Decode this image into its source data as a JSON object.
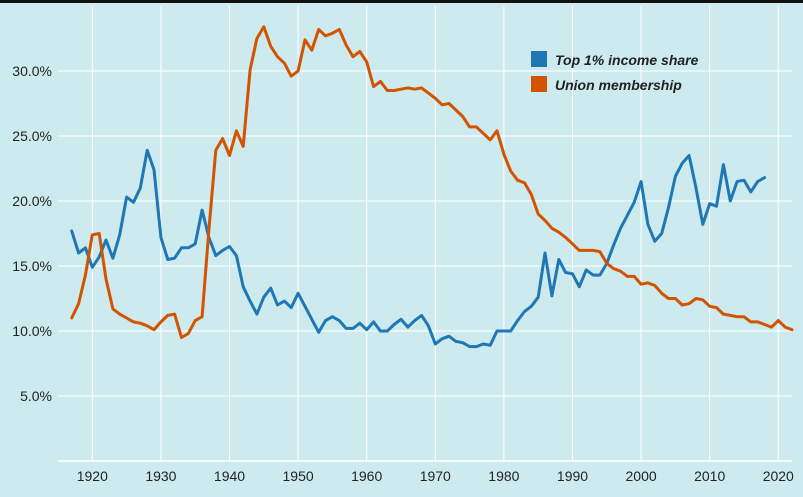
{
  "chart_data": {
    "type": "line",
    "title": "",
    "xlabel": "",
    "ylabel": "",
    "xlim": [
      1915,
      2022
    ],
    "ylim": [
      0,
      35
    ],
    "grid": true,
    "legend_position": "top-right",
    "x_ticks": [
      {
        "value": 1920,
        "label": "1920"
      },
      {
        "value": 1930,
        "label": "1930"
      },
      {
        "value": 1940,
        "label": "1940"
      },
      {
        "value": 1950,
        "label": "1950"
      },
      {
        "value": 1960,
        "label": "1960"
      },
      {
        "value": 1970,
        "label": "1970"
      },
      {
        "value": 1980,
        "label": "1980"
      },
      {
        "value": 1990,
        "label": "1990"
      },
      {
        "value": 2000,
        "label": "2000"
      },
      {
        "value": 2010,
        "label": "2010"
      },
      {
        "value": 2020,
        "label": "2020"
      }
    ],
    "y_ticks": [
      {
        "value": 5,
        "label": "5.0%"
      },
      {
        "value": 10,
        "label": "10.0%"
      },
      {
        "value": 15,
        "label": "15.0%"
      },
      {
        "value": 20,
        "label": "20.0%"
      },
      {
        "value": 25,
        "label": "25.0%"
      },
      {
        "value": 30,
        "label": "30.0%"
      }
    ],
    "series": [
      {
        "name": "Top 1% income share",
        "color": "#1f77b4",
        "points": [
          [
            1917,
            17.7
          ],
          [
            1918,
            16.0
          ],
          [
            1919,
            16.4
          ],
          [
            1920,
            14.9
          ],
          [
            1921,
            15.7
          ],
          [
            1922,
            17.0
          ],
          [
            1923,
            15.6
          ],
          [
            1924,
            17.4
          ],
          [
            1925,
            20.3
          ],
          [
            1926,
            19.9
          ],
          [
            1927,
            21.0
          ],
          [
            1928,
            23.9
          ],
          [
            1929,
            22.4
          ],
          [
            1930,
            17.2
          ],
          [
            1931,
            15.5
          ],
          [
            1932,
            15.6
          ],
          [
            1933,
            16.4
          ],
          [
            1934,
            16.4
          ],
          [
            1935,
            16.7
          ],
          [
            1936,
            19.3
          ],
          [
            1937,
            17.2
          ],
          [
            1938,
            15.8
          ],
          [
            1939,
            16.2
          ],
          [
            1940,
            16.5
          ],
          [
            1941,
            15.8
          ],
          [
            1942,
            13.4
          ],
          [
            1943,
            12.3
          ],
          [
            1944,
            11.3
          ],
          [
            1945,
            12.6
          ],
          [
            1946,
            13.3
          ],
          [
            1947,
            12.0
          ],
          [
            1948,
            12.3
          ],
          [
            1949,
            11.8
          ],
          [
            1950,
            12.9
          ],
          [
            1951,
            11.9
          ],
          [
            1952,
            10.9
          ],
          [
            1953,
            9.9
          ],
          [
            1954,
            10.8
          ],
          [
            1955,
            11.1
          ],
          [
            1956,
            10.8
          ],
          [
            1957,
            10.2
          ],
          [
            1958,
            10.2
          ],
          [
            1959,
            10.6
          ],
          [
            1960,
            10.1
          ],
          [
            1961,
            10.7
          ],
          [
            1962,
            10.0
          ],
          [
            1963,
            10.0
          ],
          [
            1964,
            10.5
          ],
          [
            1965,
            10.9
          ],
          [
            1966,
            10.3
          ],
          [
            1967,
            10.8
          ],
          [
            1968,
            11.2
          ],
          [
            1969,
            10.4
          ],
          [
            1970,
            9.0
          ],
          [
            1971,
            9.4
          ],
          [
            1972,
            9.6
          ],
          [
            1973,
            9.2
          ],
          [
            1974,
            9.1
          ],
          [
            1975,
            8.8
          ],
          [
            1976,
            8.8
          ],
          [
            1977,
            9.0
          ],
          [
            1978,
            8.9
          ],
          [
            1979,
            10.0
          ],
          [
            1980,
            10.0
          ],
          [
            1981,
            10.0
          ],
          [
            1982,
            10.8
          ],
          [
            1983,
            11.5
          ],
          [
            1984,
            11.9
          ],
          [
            1985,
            12.6
          ],
          [
            1986,
            16.0
          ],
          [
            1987,
            12.7
          ],
          [
            1988,
            15.5
          ],
          [
            1989,
            14.5
          ],
          [
            1990,
            14.4
          ],
          [
            1991,
            13.4
          ],
          [
            1992,
            14.7
          ],
          [
            1993,
            14.3
          ],
          [
            1994,
            14.3
          ],
          [
            1995,
            15.2
          ],
          [
            1996,
            16.6
          ],
          [
            1997,
            17.9
          ],
          [
            1998,
            18.9
          ],
          [
            1999,
            19.9
          ],
          [
            2000,
            21.5
          ],
          [
            2001,
            18.2
          ],
          [
            2002,
            16.9
          ],
          [
            2003,
            17.5
          ],
          [
            2004,
            19.5
          ],
          [
            2005,
            21.9
          ],
          [
            2006,
            22.9
          ],
          [
            2007,
            23.5
          ],
          [
            2008,
            21.0
          ],
          [
            2009,
            18.2
          ],
          [
            2010,
            19.8
          ],
          [
            2011,
            19.6
          ],
          [
            2012,
            22.8
          ],
          [
            2013,
            20.0
          ],
          [
            2014,
            21.5
          ],
          [
            2015,
            21.6
          ],
          [
            2016,
            20.7
          ],
          [
            2017,
            21.5
          ],
          [
            2018,
            21.8
          ]
        ]
      },
      {
        "name": "Union membership",
        "color": "#d35400",
        "points": [
          [
            1917,
            11.0
          ],
          [
            1918,
            12.1
          ],
          [
            1919,
            14.3
          ],
          [
            1920,
            17.4
          ],
          [
            1921,
            17.5
          ],
          [
            1922,
            14.0
          ],
          [
            1923,
            11.7
          ],
          [
            1924,
            11.3
          ],
          [
            1925,
            11.0
          ],
          [
            1926,
            10.7
          ],
          [
            1927,
            10.6
          ],
          [
            1928,
            10.4
          ],
          [
            1929,
            10.1
          ],
          [
            1930,
            10.7
          ],
          [
            1931,
            11.2
          ],
          [
            1932,
            11.3
          ],
          [
            1933,
            9.5
          ],
          [
            1934,
            9.8
          ],
          [
            1935,
            10.8
          ],
          [
            1936,
            11.1
          ],
          [
            1937,
            17.8
          ],
          [
            1938,
            23.9
          ],
          [
            1939,
            24.8
          ],
          [
            1940,
            23.5
          ],
          [
            1941,
            25.4
          ],
          [
            1942,
            24.2
          ],
          [
            1943,
            30.1
          ],
          [
            1944,
            32.5
          ],
          [
            1945,
            33.4
          ],
          [
            1946,
            31.9
          ],
          [
            1947,
            31.1
          ],
          [
            1948,
            30.6
          ],
          [
            1949,
            29.6
          ],
          [
            1950,
            30.0
          ],
          [
            1951,
            32.4
          ],
          [
            1952,
            31.6
          ],
          [
            1953,
            33.2
          ],
          [
            1954,
            32.7
          ],
          [
            1955,
            32.9
          ],
          [
            1956,
            33.2
          ],
          [
            1957,
            32.0
          ],
          [
            1958,
            31.1
          ],
          [
            1959,
            31.5
          ],
          [
            1960,
            30.7
          ],
          [
            1961,
            28.8
          ],
          [
            1962,
            29.2
          ],
          [
            1963,
            28.5
          ],
          [
            1964,
            28.5
          ],
          [
            1965,
            28.6
          ],
          [
            1966,
            28.7
          ],
          [
            1967,
            28.6
          ],
          [
            1968,
            28.7
          ],
          [
            1969,
            28.3
          ],
          [
            1970,
            27.9
          ],
          [
            1971,
            27.4
          ],
          [
            1972,
            27.5
          ],
          [
            1973,
            27.0
          ],
          [
            1974,
            26.5
          ],
          [
            1975,
            25.7
          ],
          [
            1976,
            25.7
          ],
          [
            1977,
            25.2
          ],
          [
            1978,
            24.7
          ],
          [
            1979,
            25.4
          ],
          [
            1980,
            23.6
          ],
          [
            1981,
            22.3
          ],
          [
            1982,
            21.6
          ],
          [
            1983,
            21.4
          ],
          [
            1984,
            20.5
          ],
          [
            1985,
            19.0
          ],
          [
            1986,
            18.5
          ],
          [
            1987,
            17.9
          ],
          [
            1988,
            17.6
          ],
          [
            1989,
            17.2
          ],
          [
            1990,
            16.7
          ],
          [
            1991,
            16.2
          ],
          [
            1992,
            16.2
          ],
          [
            1993,
            16.2
          ],
          [
            1994,
            16.1
          ],
          [
            1995,
            15.2
          ],
          [
            1996,
            14.8
          ],
          [
            1997,
            14.6
          ],
          [
            1998,
            14.2
          ],
          [
            1999,
            14.2
          ],
          [
            2000,
            13.6
          ],
          [
            2001,
            13.7
          ],
          [
            2002,
            13.5
          ],
          [
            2003,
            12.9
          ],
          [
            2004,
            12.5
          ],
          [
            2005,
            12.5
          ],
          [
            2006,
            12.0
          ],
          [
            2007,
            12.1
          ],
          [
            2008,
            12.5
          ],
          [
            2009,
            12.4
          ],
          [
            2010,
            11.9
          ],
          [
            2011,
            11.8
          ],
          [
            2012,
            11.3
          ],
          [
            2013,
            11.2
          ],
          [
            2014,
            11.1
          ],
          [
            2015,
            11.1
          ],
          [
            2016,
            10.7
          ],
          [
            2017,
            10.7
          ],
          [
            2018,
            10.5
          ],
          [
            2019,
            10.3
          ],
          [
            2020,
            10.8
          ],
          [
            2021,
            10.3
          ],
          [
            2022,
            10.1
          ]
        ]
      }
    ]
  }
}
